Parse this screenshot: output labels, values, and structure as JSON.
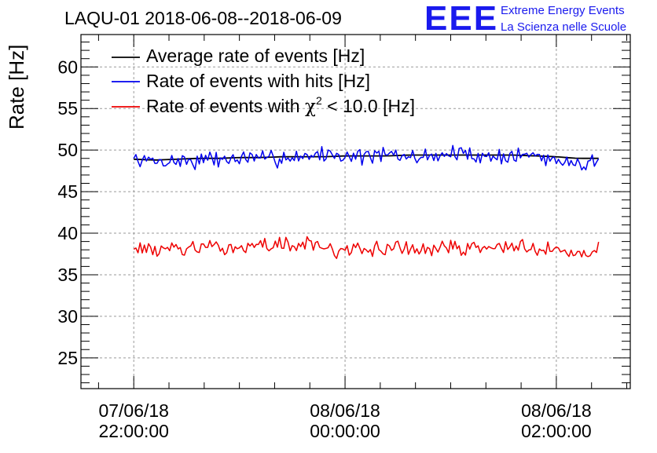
{
  "colors": {
    "avg": "#000000",
    "hits": "#0000ee",
    "chi": "#ee0000",
    "brand": "#1a1aee",
    "grid": "#9a9a9a",
    "axis": "#000000"
  },
  "chart_data": {
    "type": "line",
    "title": "LAQU-01 2018-06-08--2018-06-09",
    "ylabel": "Rate [Hz]",
    "xlabel": "",
    "ylim": [
      21.3,
      63.9
    ],
    "xlim_hours": [
      -0.25,
      2.35
    ],
    "y_ticks": [
      25,
      30,
      35,
      40,
      45,
      50,
      55,
      60
    ],
    "x_ticks": [
      {
        "t": 0,
        "line1": "07/06/18",
        "line2": "22:00:00"
      },
      {
        "t": 1,
        "line1": "08/06/18",
        "line2": "00:00:00"
      },
      {
        "t": 2,
        "line1": "08/06/18",
        "line2": "02:00:00"
      }
    ],
    "legend": {
      "placement": "top-left",
      "entries": [
        {
          "series": "avg",
          "label": "Average rate of events [Hz]"
        },
        {
          "series": "hits",
          "label": "Rate of events with hits [Hz]"
        },
        {
          "series": "chi",
          "label_pre": "Rate of events with ",
          "label_chi": "χ",
          "label_sup": "2",
          "label_post": " < 10.0 [Hz]"
        }
      ]
    },
    "series": [
      {
        "key": "avg",
        "name": "Average rate of events [Hz]",
        "t_start": 0.0,
        "t_step": 0.1,
        "noise": 0,
        "seed": 1,
        "values": [
          48.9,
          48.8,
          48.9,
          49.0,
          49.0,
          49.1,
          49.1,
          49.2,
          49.2,
          49.2,
          49.3,
          49.3,
          49.3,
          49.4,
          49.4,
          49.4,
          49.4,
          49.4,
          49.4,
          49.3,
          49.2,
          49.0,
          49.0
        ]
      },
      {
        "key": "hits",
        "name": "Rate of events with hits [Hz]",
        "t_start": 0.0,
        "t_step": 0.1,
        "noise": 0.9,
        "seed": 7,
        "values": [
          48.8,
          48.6,
          48.7,
          48.7,
          48.9,
          49.0,
          48.9,
          49.1,
          49.3,
          49.5,
          49.3,
          49.3,
          49.4,
          49.1,
          49.3,
          49.6,
          49.4,
          49.2,
          49.3,
          49.4,
          48.8,
          48.5,
          48.9
        ]
      },
      {
        "key": "chi",
        "name": "Rate of events with χ2 < 10.0 [Hz]",
        "t_start": 0.0,
        "t_step": 0.1,
        "noise": 0.8,
        "seed": 13,
        "values": [
          38.4,
          38.0,
          38.2,
          38.1,
          38.2,
          38.4,
          38.5,
          38.6,
          38.8,
          38.2,
          37.8,
          38.0,
          38.3,
          38.2,
          38.1,
          38.3,
          38.2,
          38.3,
          38.5,
          37.9,
          38.0,
          37.6,
          38.3
        ]
      }
    ]
  },
  "brand": {
    "logo": "EEE",
    "line1": "Extreme Energy Events",
    "line2": "La Scienza nelle Scuole"
  }
}
